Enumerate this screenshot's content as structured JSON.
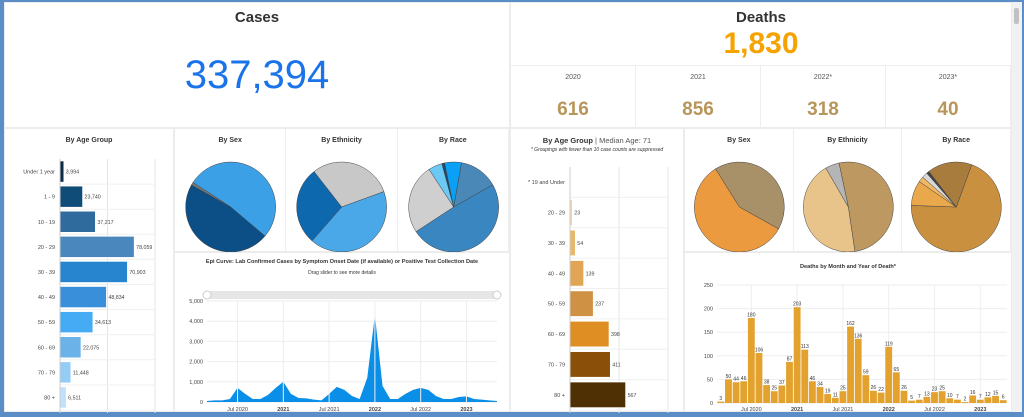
{
  "cases": {
    "title": "Cases",
    "total": "337,394",
    "color": "#1a73e8"
  },
  "deaths": {
    "title": "Deaths",
    "total": "1,830",
    "color": "#f4a300",
    "years": [
      {
        "label": "2020",
        "value": "616"
      },
      {
        "label": "2021",
        "value": "856"
      },
      {
        "label": "2022*",
        "value": "318"
      },
      {
        "label": "2023*",
        "value": "40"
      }
    ],
    "year_color": "#b8965a"
  },
  "cases_age": {
    "type": "bar",
    "title": "By Age Group",
    "xlim": [
      0,
      100000
    ],
    "categories": [
      "Under 1 year",
      "1 - 9",
      "10 - 19",
      "20 - 29",
      "30 - 39",
      "40 - 49",
      "50 - 59",
      "60 - 69",
      "70 - 79",
      "80 +"
    ],
    "values": [
      3994,
      23740,
      37217,
      78059,
      70903,
      48834,
      34613,
      22075,
      11448,
      6511
    ],
    "labels": [
      "3,994",
      "23,740",
      "37,217",
      "78,059",
      "70,903",
      "48,834",
      "34,613",
      "22,075",
      "11,448",
      "6,511"
    ],
    "colors": [
      "#0a2a45",
      "#0f4c78",
      "#2f6b9c",
      "#4a87bd",
      "#2784cf",
      "#3a8fdb",
      "#45abf5",
      "#6ab2e8",
      "#93cdf6",
      "#bfe1fb"
    ]
  },
  "cases_pies": [
    {
      "title": "By Sex",
      "fractions": [
        0.52,
        0.47,
        0.01
      ],
      "colors": [
        "#3ba0e6",
        "#0b4f86",
        "#777777"
      ]
    },
    {
      "title": "By Ethnicity",
      "fractions": [
        0.3,
        0.42,
        0.28
      ],
      "colors": [
        "#c8c8c8",
        "#4aa8e8",
        "#0d68ad"
      ]
    },
    {
      "title": "By Race",
      "fractions": [
        0.14,
        0.49,
        0.25,
        0.05,
        0.01,
        0.06
      ],
      "colors": [
        "#4a88b8",
        "#3a86c0",
        "#cfcfcf",
        "#6cc8f5",
        "#1a4a70",
        "#0aa0f5"
      ]
    }
  ],
  "epi": {
    "type": "area",
    "title": "Epi Curve: Lab Confirmed Cases by Symptom Onset Date (if available) or Positive Test Collection Date",
    "subtitle": "Drag slider to see more details",
    "ylim": [
      0,
      5000
    ],
    "yticks": [
      "0",
      "1,000",
      "2,000",
      "3,000",
      "4,000",
      "5,000"
    ],
    "xticks": [
      "Jul 2020",
      "2021",
      "Jul 2021",
      "2022",
      "Jul 2022",
      "2023"
    ],
    "x": [
      "2020-03",
      "2020-04",
      "2020-05",
      "2020-06",
      "2020-07",
      "2020-08",
      "2020-09",
      "2020-10",
      "2020-11",
      "2020-12",
      "2021-01",
      "2021-02",
      "2021-03",
      "2021-04",
      "2021-05",
      "2021-06",
      "2021-07",
      "2021-08",
      "2021-09",
      "2021-10",
      "2021-11",
      "2021-12",
      "2022-01",
      "2022-02",
      "2022-03",
      "2022-04",
      "2022-05",
      "2022-06",
      "2022-07",
      "2022-08",
      "2022-09",
      "2022-10",
      "2022-11",
      "2022-12",
      "2023-01",
      "2023-02",
      "2023-03",
      "2023-04",
      "2023-05"
    ],
    "values": [
      50,
      80,
      80,
      150,
      700,
      400,
      150,
      150,
      350,
      700,
      1000,
      400,
      200,
      180,
      120,
      80,
      400,
      750,
      600,
      300,
      150,
      1200,
      4300,
      800,
      150,
      150,
      400,
      600,
      700,
      600,
      300,
      150,
      150,
      250,
      280,
      150,
      120,
      80,
      50
    ],
    "color": "#0a8fe8"
  },
  "deaths_age": {
    "type": "bar",
    "title": "By Age Group",
    "title_extra": "Median Age: 71",
    "note": "* Groupings with fewer than 10 case counts are suppressed",
    "xlim": [
      0,
      1000
    ],
    "categories": [
      "* 19 and Under",
      "20 - 29",
      "30 - 39",
      "40 - 49",
      "50 - 59",
      "60 - 69",
      "70 - 79",
      "80 +"
    ],
    "values": [
      null,
      23,
      54,
      139,
      237,
      398,
      411,
      567
    ],
    "labels": [
      "",
      "23",
      "54",
      "139",
      "237",
      "398",
      "411",
      "567"
    ],
    "colors": [
      "#f7d9a8",
      "#f3d29c",
      "#e8b86a",
      "#e0a655",
      "#cf9245",
      "#de8e22",
      "#8a5009",
      "#4f3005"
    ]
  },
  "deaths_pies": [
    {
      "title": "By Sex",
      "fractions": [
        0.42,
        0.58
      ],
      "colors": [
        "#a89068",
        "#eb9a40"
      ]
    },
    {
      "title": "By Ethnicity",
      "fractions": [
        0.51,
        0.44,
        0.05
      ],
      "colors": [
        "#bd9860",
        "#e8c48a",
        "#b5b5b5"
      ]
    },
    {
      "title": "By Race",
      "fractions": [
        0.7,
        0.09,
        0.02,
        0.02,
        0.01,
        0.16
      ],
      "colors": [
        "#c9903f",
        "#eaa84c",
        "#f0b860",
        "#d8d8d8",
        "#444444",
        "#a87c3c"
      ]
    }
  ],
  "deaths_month": {
    "type": "bar",
    "title": "Deaths by Month and Year of Death*",
    "ylim": [
      0,
      250
    ],
    "yticks": [
      "0",
      "50",
      "100",
      "150",
      "200",
      "250"
    ],
    "xticks": [
      "Jul 2020",
      "2021",
      "Jul 2021",
      "2022",
      "Jul 2022",
      "2023"
    ],
    "values": [
      3,
      50,
      44,
      46,
      180,
      106,
      38,
      25,
      37,
      87,
      203,
      113,
      46,
      34,
      19,
      11,
      25,
      162,
      136,
      59,
      26,
      22,
      119,
      65,
      26,
      5,
      7,
      13,
      23,
      25,
      10,
      7,
      2,
      16,
      7,
      12,
      15,
      6
    ],
    "color": "#e3a22d"
  }
}
